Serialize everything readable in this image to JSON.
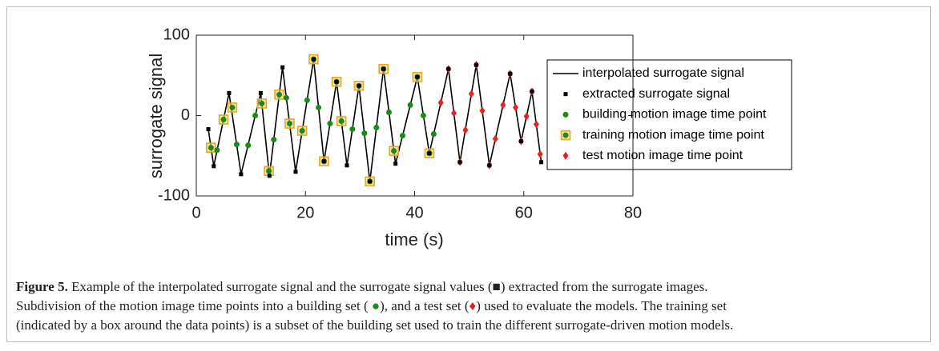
{
  "chart_data": {
    "type": "line",
    "xlabel": "time (s)",
    "ylabel": "surrogate signal",
    "xlim": [
      0,
      80
    ],
    "xticks": [
      0,
      20,
      40,
      60,
      80
    ],
    "ylim": [
      -100,
      100
    ],
    "yticks": [
      -100,
      0,
      100
    ],
    "legend": "right",
    "series": [
      {
        "name": "interpolated surrogate signal",
        "color": "#000000",
        "marker": "line",
        "x": [
          2.2,
          3.2,
          6,
          8.2,
          11.8,
          13.4,
          15.8,
          18.2,
          21.5,
          23.4,
          25.7,
          27.6,
          29.8,
          31.8,
          34.3,
          36.5,
          40.5,
          42.7,
          46.2,
          48.3,
          51.3,
          53.7,
          57.5,
          59.5,
          61.5,
          63.2
        ],
        "values": [
          -17,
          -63,
          28,
          -73,
          28,
          -75,
          60,
          -70,
          70,
          -57,
          42,
          -62,
          37,
          -82,
          58,
          -60,
          48,
          -47,
          58,
          -58,
          63,
          -62,
          52,
          -32,
          30,
          -58
        ]
      },
      {
        "name": "extracted surrogate signal",
        "color": "#000000",
        "marker": "square",
        "x": [
          2.2,
          3.2,
          6,
          8.2,
          11.8,
          13.4,
          15.8,
          18.2,
          21.5,
          23.4,
          25.7,
          27.6,
          29.8,
          31.8,
          34.3,
          36.5,
          40.5,
          42.7,
          46.2,
          48.3,
          51.3,
          53.7,
          57.5,
          59.5,
          61.5,
          63.2
        ],
        "values": [
          -17,
          -63,
          28,
          -73,
          28,
          -75,
          60,
          -70,
          70,
          -57,
          42,
          -62,
          37,
          -82,
          58,
          -60,
          48,
          -47,
          58,
          -58,
          63,
          -62,
          52,
          -32,
          30,
          -58
        ]
      },
      {
        "name": "building motion image time point",
        "color": "#1a8a1a",
        "marker": "circle",
        "x": [
          2.7,
          3.8,
          5.0,
          6.6,
          7.4,
          9.5,
          10.8,
          12.0,
          13.3,
          14.2,
          15.2,
          16.5,
          17.1,
          19.4,
          20.3,
          21.5,
          22.4,
          23.4,
          24.5,
          25.7,
          26.6,
          28.6,
          29.8,
          30.8,
          31.8,
          33.0,
          34.3,
          35.3,
          36.2,
          37.8,
          39.2,
          40.5,
          41.6,
          42.7,
          43.5
        ],
        "values": [
          -40,
          -43,
          -5,
          10,
          -36,
          -37,
          0,
          15,
          -69,
          -30,
          26,
          22,
          -10,
          -19,
          19,
          70,
          10,
          -57,
          -10,
          42,
          -7,
          -17,
          37,
          -22,
          -82,
          -15,
          58,
          4,
          -44,
          -25,
          13,
          48,
          0,
          -47,
          -23
        ]
      },
      {
        "name": "training motion image time point",
        "color": "#e8a820",
        "marker": "box",
        "x": [
          2.7,
          5.0,
          6.6,
          12.0,
          13.3,
          15.2,
          17.1,
          19.4,
          21.5,
          23.4,
          25.7,
          26.6,
          29.8,
          31.8,
          34.3,
          36.2,
          40.5,
          42.7
        ],
        "values": [
          -40,
          -5,
          10,
          15,
          -69,
          26,
          -10,
          -19,
          70,
          -57,
          42,
          -7,
          37,
          -82,
          58,
          -44,
          48,
          -47
        ]
      },
      {
        "name": "test motion image time point",
        "color": "#e82020",
        "marker": "diamond",
        "x": [
          44.8,
          46.2,
          47.2,
          48.3,
          49.3,
          50.4,
          51.3,
          52.4,
          53.7,
          54.8,
          56.2,
          57.5,
          58.5,
          59.5,
          60.5,
          61.5,
          62.3,
          63.0
        ],
        "values": [
          16,
          58,
          3,
          -58,
          -18,
          27,
          63,
          6,
          -62,
          -29,
          13,
          52,
          10,
          -32,
          -1,
          30,
          -11,
          -48
        ]
      }
    ]
  },
  "caption": {
    "label": "Figure 5.",
    "segments": [
      " Example of the interpolated surrogate signal and the surrogate signal values (",
      "■",
      ") extracted from the surrogate images.",
      "Subdivision of the motion image time points into a building set ( ",
      "●",
      "), and a test set (",
      "♦",
      ") used to evaluate the models. The training set",
      "(indicated by a box around the data points) is a subset of the building set used to train the different surrogate-driven motion models."
    ]
  }
}
